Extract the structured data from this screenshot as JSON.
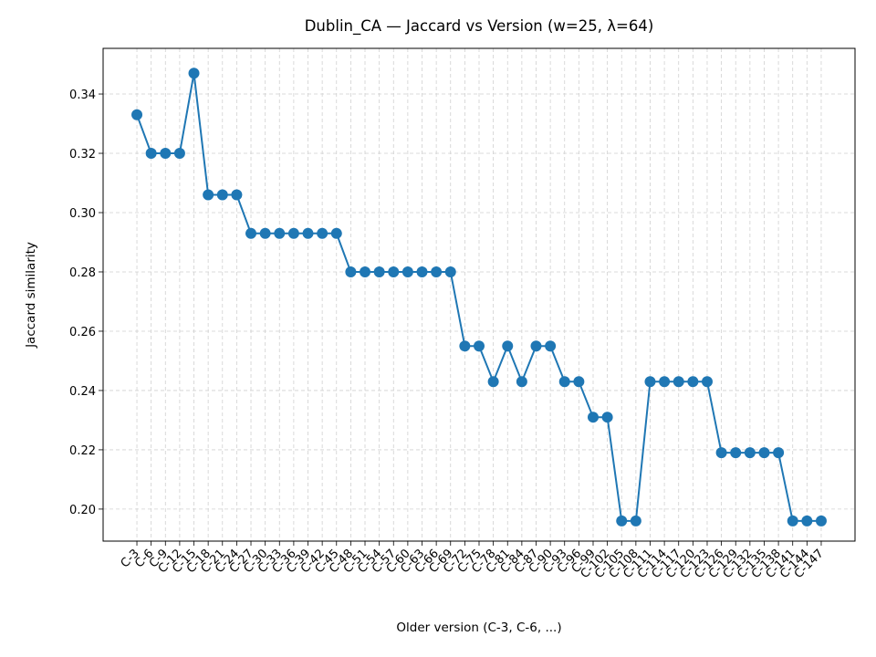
{
  "chart_data": {
    "type": "line",
    "title": "Dublin_CA — Jaccard vs Version (w=25, λ=64)",
    "x_label": "Older version (C-3, C-6, ...)",
    "y_label": "Jaccard similarity",
    "categories": [
      "C-3",
      "C-6",
      "C-9",
      "C-12",
      "C-15",
      "C-18",
      "C-21",
      "C-24",
      "C-27",
      "C-30",
      "C-33",
      "C-36",
      "C-39",
      "C-42",
      "C-45",
      "C-48",
      "C-51",
      "C-54",
      "C-57",
      "C-60",
      "C-63",
      "C-66",
      "C-69",
      "C-72",
      "C-75",
      "C-78",
      "C-81",
      "C-84",
      "C-87",
      "C-90",
      "C-93",
      "C-96",
      "C-99",
      "C-102",
      "C-105",
      "C-108",
      "C-111",
      "C-114",
      "C-117",
      "C-120",
      "C-123",
      "C-126",
      "C-129",
      "C-132",
      "C-135",
      "C-138",
      "C-141",
      "C-144",
      "C-147"
    ],
    "series": [
      {
        "name": "Jaccard similarity",
        "color": "#1f77b4",
        "values": [
          0.333,
          0.32,
          0.32,
          0.32,
          0.347,
          0.306,
          0.306,
          0.306,
          0.293,
          0.293,
          0.293,
          0.293,
          0.293,
          0.293,
          0.293,
          0.28,
          0.28,
          0.28,
          0.28,
          0.28,
          0.28,
          0.28,
          0.28,
          0.255,
          0.255,
          0.243,
          0.255,
          0.243,
          0.255,
          0.255,
          0.243,
          0.243,
          0.231,
          0.231,
          0.196,
          0.196,
          0.243,
          0.243,
          0.243,
          0.243,
          0.243,
          0.219,
          0.219,
          0.219,
          0.219,
          0.219,
          0.196,
          0.196,
          0.196
        ]
      }
    ],
    "ylim": [
      0.1892,
      0.3554
    ],
    "yticks": [
      {
        "value": 0.2,
        "label": "0.20"
      },
      0.22,
      0.24,
      0.26,
      0.28,
      {
        "value": 0.3,
        "label": "0.30"
      },
      0.32,
      0.34
    ],
    "grid": true
  }
}
